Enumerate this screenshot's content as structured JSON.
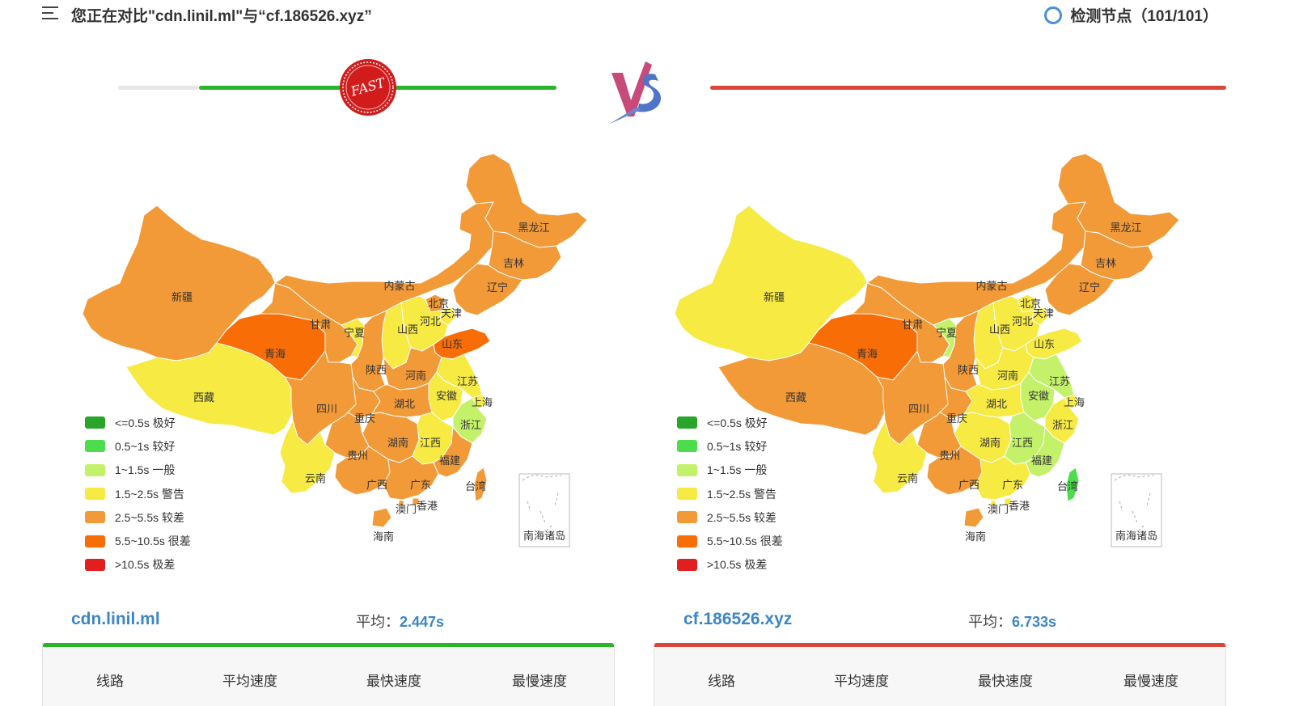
{
  "header": {
    "title": "您正在对比\"cdn.linil.ml\"与“cf.186526.xyz”",
    "nodes_label": "检测节点（101/101）"
  },
  "compare": {
    "fast_badge": "FAST",
    "left_bar_color": "#2ab52a",
    "right_bar_color": "#d9463a",
    "left_bar_fill": 0.82,
    "right_bar_fill": 1.0
  },
  "legend": [
    {
      "label": "<=0.5s 极好",
      "color": "#2aa52a"
    },
    {
      "label": "0.5~1s 较好",
      "color": "#4cdc4c"
    },
    {
      "label": "1~1.5s 一般",
      "color": "#c3f26a"
    },
    {
      "label": "1.5~2.5s 警告",
      "color": "#f6ea43"
    },
    {
      "label": "2.5~5.5s 较差",
      "color": "#f29a38"
    },
    {
      "label": "5.5~10.5s 很差",
      "color": "#f86d06"
    },
    {
      "label": ">10.5s 极差",
      "color": "#e21f1f"
    }
  ],
  "maps": [
    {
      "name": "cdn.linil.ml",
      "provinces": {
        "新疆": "#f29a38",
        "西藏": "#f6ea43",
        "青海": "#f86d06",
        "甘肃": "#f29a38",
        "内蒙古": "#f29a38",
        "黑龙江": "#f29a38",
        "吉林": "#f29a38",
        "辽宁": "#f29a38",
        "北京": "#f29a38",
        "天津": "#f6ea43",
        "河北": "#f6ea43",
        "山西": "#f6ea43",
        "山东": "#f86d06",
        "宁夏": "#f6ea43",
        "陕西": "#f29a38",
        "河南": "#f29a38",
        "江苏": "#f6ea43",
        "安徽": "#f6ea43",
        "上海": "#f6ea43",
        "浙江": "#c3f26a",
        "四川": "#f29a38",
        "重庆": "#f29a38",
        "湖北": "#f29a38",
        "湖南": "#f29a38",
        "江西": "#f6ea43",
        "贵州": "#f29a38",
        "云南": "#f6ea43",
        "广西": "#f29a38",
        "广东": "#f29a38",
        "福建": "#f29a38",
        "台湾": "#f29a38",
        "海南": "#f29a38",
        "澳门": "#f29a38",
        "香港": "#f29a38"
      }
    },
    {
      "name": "cf.186526.xyz",
      "provinces": {
        "新疆": "#f6ea43",
        "西藏": "#f29a38",
        "青海": "#f86d06",
        "甘肃": "#f29a38",
        "内蒙古": "#f29a38",
        "黑龙江": "#f29a38",
        "吉林": "#f29a38",
        "辽宁": "#f29a38",
        "北京": "#f6ea43",
        "天津": "#f6ea43",
        "河北": "#f6ea43",
        "山西": "#f6ea43",
        "山东": "#f6ea43",
        "宁夏": "#c3f26a",
        "陕西": "#f29a38",
        "河南": "#f6ea43",
        "江苏": "#c3f26a",
        "安徽": "#c3f26a",
        "上海": "#f6ea43",
        "浙江": "#f6ea43",
        "四川": "#f29a38",
        "重庆": "#f29a38",
        "湖北": "#f6ea43",
        "湖南": "#f6ea43",
        "江西": "#c3f26a",
        "贵州": "#f29a38",
        "云南": "#f6ea43",
        "广西": "#f29a38",
        "广东": "#f6ea43",
        "福建": "#c3f26a",
        "台湾": "#4cdc4c",
        "海南": "#f29a38",
        "澳门": "#f6ea43",
        "香港": "#f6ea43"
      }
    }
  ],
  "south_sea_label": "南海诸岛",
  "stats": [
    {
      "site": "cdn.linil.ml",
      "avg_label": "平均：",
      "avg_value": "2.447s",
      "accent": "#2ab52a"
    },
    {
      "site": "cf.186526.xyz",
      "avg_label": "平均：",
      "avg_value": "6.733s",
      "accent": "#d9463a"
    }
  ],
  "table_columns": [
    "线路",
    "平均速度",
    "最快速度",
    "最慢速度"
  ]
}
